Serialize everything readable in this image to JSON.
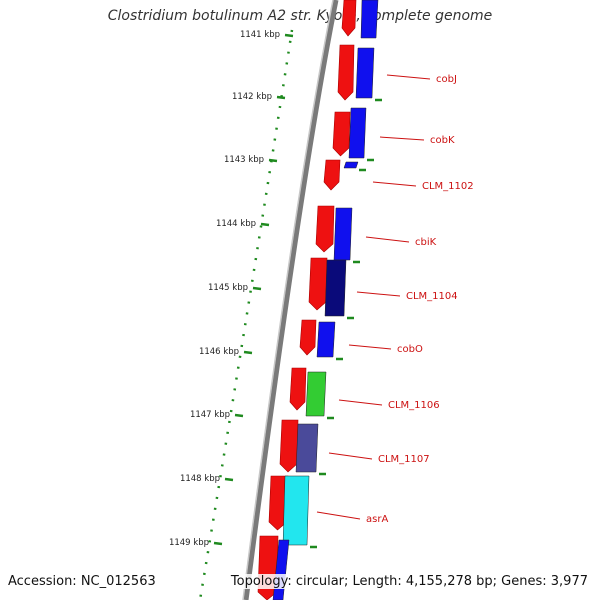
{
  "title": "Clostridium botulinum A2 str. Kyoto, complete genome",
  "footer": {
    "accession": "Accession: NC_012563",
    "topology": "Topology: circular; Length: 4,155,278 bp; Genes: 3,977"
  },
  "colors": {
    "backbone": "#7a7a7a",
    "ruler_dots": "#1f8a1f",
    "forward_strand": "#ee1111",
    "label": "#cc1111"
  },
  "ruler": {
    "ticks": [
      "1141 kbp",
      "1142 kbp",
      "1143 kbp",
      "1144 kbp",
      "1145 kbp",
      "1146 kbp",
      "1147 kbp",
      "1148 kbp",
      "1149 kbp"
    ]
  },
  "genes": [
    {
      "name": "cobJ",
      "color": "#1010ee"
    },
    {
      "name": "cobK",
      "color": "#1010ee"
    },
    {
      "name": "CLM_1102",
      "color": "#1010ee"
    },
    {
      "name": "cbiK",
      "color": "#1010ee"
    },
    {
      "name": "CLM_1104",
      "color": "#0a0a7a"
    },
    {
      "name": "cobO",
      "color": "#1010ee"
    },
    {
      "name": "CLM_1106",
      "color": "#33cc33"
    },
    {
      "name": "CLM_1107",
      "color": "#4a4a9a"
    },
    {
      "name": "asrA",
      "color": "#22e6ee"
    }
  ]
}
